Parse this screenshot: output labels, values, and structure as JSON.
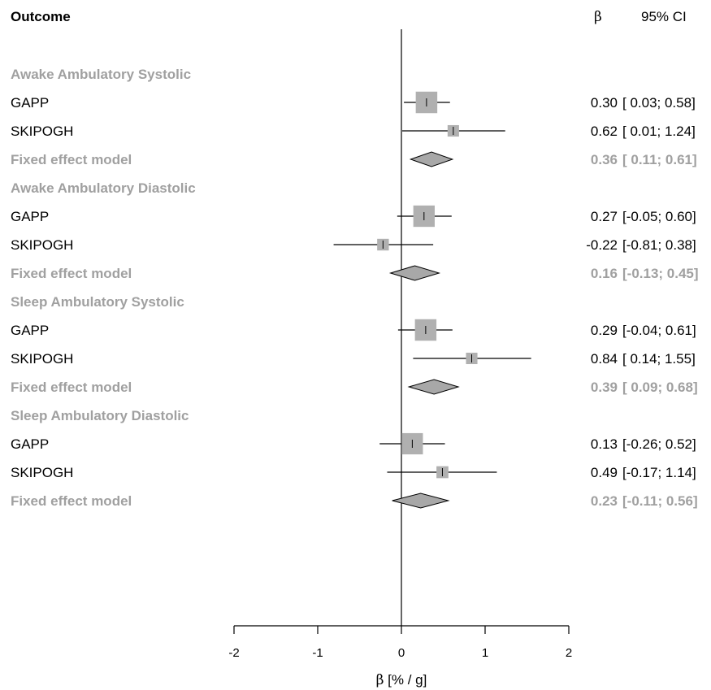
{
  "header": {
    "outcome_label": "Outcome",
    "beta_label": "β",
    "ci_label": "95% CI"
  },
  "chart_data": {
    "type": "forest",
    "xlabel_symbol": "β",
    "xlabel_units": "[% / g]",
    "xlim": [
      -2,
      2
    ],
    "xticks": [
      -2,
      -1,
      0,
      1,
      2
    ],
    "reference_line": 0,
    "colors": {
      "box": "#b0b0b0",
      "diamond": "#a8a8a8",
      "muted_text": "#a0a0a0"
    },
    "groups": [
      {
        "name": "Awake Ambulatory Systolic",
        "studies": [
          {
            "name": "GAPP",
            "estimate": 0.3,
            "lower": 0.03,
            "upper": 0.58,
            "weight": 0.78,
            "est_text": "0.30",
            "ci_text": "[ 0.03; 0.58]"
          },
          {
            "name": "SKIPOGH",
            "estimate": 0.62,
            "lower": 0.01,
            "upper": 1.24,
            "weight": 0.22,
            "est_text": "0.62",
            "ci_text": "[ 0.01; 1.24]"
          }
        ],
        "fixed": {
          "name": "Fixed effect model",
          "estimate": 0.36,
          "lower": 0.11,
          "upper": 0.61,
          "est_text": "0.36",
          "ci_text": "[ 0.11; 0.61]"
        }
      },
      {
        "name": "Awake Ambulatory Diastolic",
        "studies": [
          {
            "name": "GAPP",
            "estimate": 0.27,
            "lower": -0.05,
            "upper": 0.6,
            "weight": 0.77,
            "est_text": "0.27",
            "ci_text": "[-0.05; 0.60]"
          },
          {
            "name": "SKIPOGH",
            "estimate": -0.22,
            "lower": -0.81,
            "upper": 0.38,
            "weight": 0.23,
            "est_text": "-0.22",
            "ci_text": "[-0.81; 0.38]"
          }
        ],
        "fixed": {
          "name": "Fixed effect model",
          "estimate": 0.16,
          "lower": -0.13,
          "upper": 0.45,
          "est_text": "0.16",
          "ci_text": "[-0.13; 0.45]"
        }
      },
      {
        "name": "Sleep Ambulatory Systolic",
        "studies": [
          {
            "name": "GAPP",
            "estimate": 0.29,
            "lower": -0.04,
            "upper": 0.61,
            "weight": 0.78,
            "est_text": "0.29",
            "ci_text": "[-0.04; 0.61]"
          },
          {
            "name": "SKIPOGH",
            "estimate": 0.84,
            "lower": 0.14,
            "upper": 1.55,
            "weight": 0.22,
            "est_text": "0.84",
            "ci_text": "[ 0.14; 1.55]"
          }
        ],
        "fixed": {
          "name": "Fixed effect model",
          "estimate": 0.39,
          "lower": 0.09,
          "upper": 0.68,
          "est_text": "0.39",
          "ci_text": "[ 0.09; 0.68]"
        }
      },
      {
        "name": "Sleep Ambulatory Diastolic",
        "studies": [
          {
            "name": "GAPP",
            "estimate": 0.13,
            "lower": -0.26,
            "upper": 0.52,
            "weight": 0.76,
            "est_text": "0.13",
            "ci_text": "[-0.26; 0.52]"
          },
          {
            "name": "SKIPOGH",
            "estimate": 0.49,
            "lower": -0.17,
            "upper": 1.14,
            "weight": 0.24,
            "est_text": "0.49",
            "ci_text": "[-0.17; 1.14]"
          }
        ],
        "fixed": {
          "name": "Fixed effect model",
          "estimate": 0.23,
          "lower": -0.11,
          "upper": 0.56,
          "est_text": "0.23",
          "ci_text": "[-0.11; 0.56]"
        }
      }
    ]
  }
}
